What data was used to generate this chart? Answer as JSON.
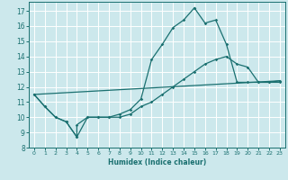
{
  "xlabel": "Humidex (Indice chaleur)",
  "xlim": [
    -0.5,
    23.5
  ],
  "ylim": [
    8,
    17.6
  ],
  "yticks": [
    8,
    9,
    10,
    11,
    12,
    13,
    14,
    15,
    16,
    17
  ],
  "xticks": [
    0,
    1,
    2,
    3,
    4,
    5,
    6,
    7,
    8,
    9,
    10,
    11,
    12,
    13,
    14,
    15,
    16,
    17,
    18,
    19,
    20,
    21,
    22,
    23
  ],
  "bg_color": "#cce8ec",
  "line_color": "#1a7070",
  "grid_color": "#ffffff",
  "line1_x": [
    0,
    1,
    2,
    3,
    4,
    4,
    5,
    6,
    7,
    8,
    9,
    10,
    11,
    12,
    13,
    14,
    15,
    15,
    16,
    17,
    18,
    19,
    20,
    21,
    22,
    23
  ],
  "line1_y": [
    11.5,
    10.7,
    10.0,
    9.7,
    8.7,
    9.5,
    10.0,
    10.0,
    10.0,
    10.2,
    10.5,
    11.2,
    13.8,
    14.8,
    15.9,
    16.4,
    17.2,
    17.2,
    16.2,
    16.4,
    14.8,
    12.3,
    12.3,
    12.3,
    12.3,
    12.3
  ],
  "line2_x": [
    0,
    1,
    2,
    3,
    4,
    5,
    6,
    7,
    8,
    9,
    10,
    11,
    12,
    13,
    14,
    15,
    16,
    17,
    18,
    19,
    20,
    21,
    22,
    23
  ],
  "line2_y": [
    11.5,
    10.7,
    10.0,
    9.7,
    8.7,
    10.0,
    10.0,
    10.0,
    10.0,
    10.2,
    10.7,
    11.0,
    11.5,
    12.0,
    12.5,
    13.0,
    13.5,
    13.8,
    14.0,
    13.5,
    13.3,
    12.3,
    12.3,
    12.4
  ],
  "line3_x": [
    0,
    23
  ],
  "line3_y": [
    11.5,
    12.4
  ]
}
